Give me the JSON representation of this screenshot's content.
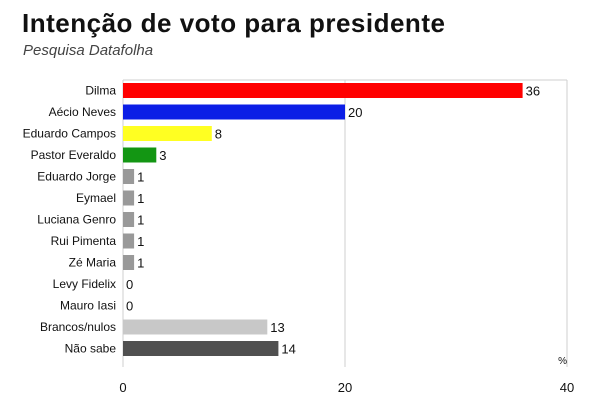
{
  "header": {
    "title": "Intenção de voto para presidente",
    "subtitle": "Pesquisa Datafolha"
  },
  "chart_data": {
    "type": "bar",
    "orientation": "horizontal",
    "categories": [
      "Dilma",
      "Aécio Neves",
      "Eduardo Campos",
      "Pastor Everaldo",
      "Eduardo Jorge",
      "Eymael",
      "Luciana Genro",
      "Rui Pimenta",
      "Zé Maria",
      "Levy Fidelix",
      "Mauro Iasi",
      "Brancos/nulos",
      "Não sabe"
    ],
    "values": [
      36,
      20,
      8,
      3,
      1,
      1,
      1,
      1,
      1,
      0,
      0,
      13,
      14
    ],
    "colors": [
      "#ff0000",
      "#0b1ee6",
      "#ffff22",
      "#139613",
      "#999999",
      "#999999",
      "#999999",
      "#999999",
      "#999999",
      "#999999",
      "#999999",
      "#c8c8c8",
      "#505050"
    ],
    "xlim": [
      0,
      40
    ],
    "xticks": [
      0,
      20,
      40
    ],
    "unit_label": "%",
    "grid": true,
    "legend": "none"
  }
}
